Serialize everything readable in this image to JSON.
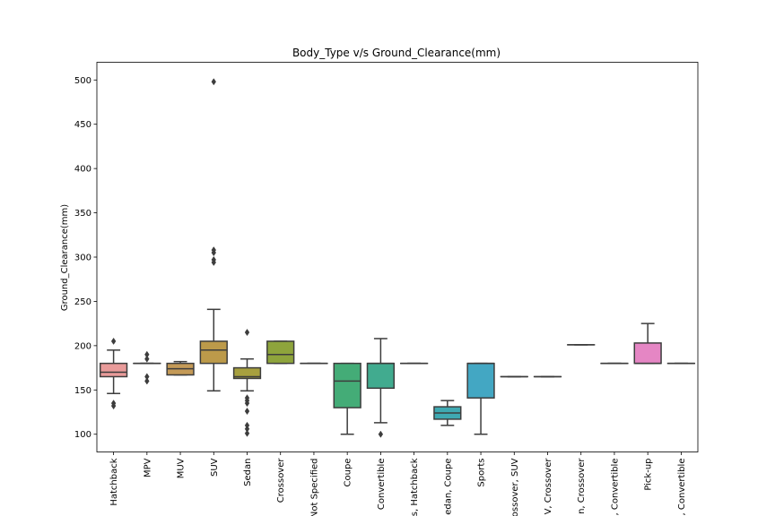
{
  "chart_data": {
    "type": "box",
    "title": "Body_Type v/s Ground_Clearance(mm)",
    "xlabel": "",
    "ylabel": "Ground_Clearance(mm)",
    "ylim": [
      80,
      520
    ],
    "yticks": [
      100,
      150,
      200,
      250,
      300,
      350,
      400,
      450,
      500
    ],
    "grid": false,
    "categories": [
      "Hatchback",
      "MPV",
      "MUV",
      "SUV",
      "Sedan",
      "Crossover",
      "Not Specified",
      "Coupe",
      "Convertible",
      "s, Hatchback",
      "edan, Coupe",
      "Sports",
      "rossover, SUV",
      "V, Crossover",
      "n, Crossover",
      ", Convertible",
      "Pick-up",
      ", Convertible"
    ],
    "boxes": [
      {
        "category": "Hatchback",
        "color": "#e99b9a",
        "whislo": 146,
        "q1": 165,
        "med": 170,
        "q3": 180,
        "whishi": 195,
        "fliers": [
          205,
          135,
          132
        ]
      },
      {
        "category": "MPV",
        "color": "#dfa35e",
        "whislo": 180,
        "q1": 180,
        "med": 180,
        "q3": 180,
        "whishi": 180,
        "fliers": [
          190,
          185,
          165,
          160
        ]
      },
      {
        "category": "MUV",
        "color": "#c49a57",
        "whislo": 167,
        "q1": 167,
        "med": 174,
        "q3": 180,
        "whishi": 182,
        "fliers": []
      },
      {
        "category": "SUV",
        "color": "#bc9a4a",
        "whislo": 149,
        "q1": 180,
        "med": 195,
        "q3": 205,
        "whishi": 241,
        "fliers": [
          498,
          308,
          305,
          297,
          294
        ]
      },
      {
        "category": "Sedan",
        "color": "#a7a03f",
        "whislo": 149,
        "q1": 163,
        "med": 165,
        "q3": 175,
        "whishi": 185,
        "fliers": [
          215,
          141,
          138,
          135,
          126,
          110,
          106,
          101
        ]
      },
      {
        "category": "Crossover",
        "color": "#8ea43c",
        "whislo": 180,
        "q1": 180,
        "med": 190,
        "q3": 205,
        "whishi": 205,
        "fliers": []
      },
      {
        "category": "Not Specified",
        "color": "#5bae52",
        "whislo": 180,
        "q1": 180,
        "med": 180,
        "q3": 180,
        "whishi": 180,
        "fliers": []
      },
      {
        "category": "Coupe",
        "color": "#44ac77",
        "whislo": 100,
        "q1": 130,
        "med": 160,
        "q3": 180,
        "whishi": 180,
        "fliers": []
      },
      {
        "category": "Convertible",
        "color": "#41ab8f",
        "whislo": 113,
        "q1": 152,
        "med": 180,
        "q3": 180,
        "whishi": 208,
        "fliers": [
          100
        ]
      },
      {
        "category": "s, Hatchback",
        "color": "#40ab9f",
        "whislo": 180,
        "q1": 180,
        "med": 180,
        "q3": 180,
        "whishi": 180,
        "fliers": []
      },
      {
        "category": "edan, Coupe",
        "color": "#3fa9b2",
        "whislo": 110,
        "q1": 117,
        "med": 124,
        "q3": 131,
        "whishi": 138,
        "fliers": []
      },
      {
        "category": "Sports",
        "color": "#43a7c3",
        "whislo": 100,
        "q1": 141,
        "med": 180,
        "q3": 180,
        "whishi": 180,
        "fliers": []
      },
      {
        "category": "rossover, SUV",
        "color": "#4aa2d6",
        "whislo": 165,
        "q1": 165,
        "med": 165,
        "q3": 165,
        "whishi": 165,
        "fliers": []
      },
      {
        "category": "V, Crossover",
        "color": "#7b9be1",
        "whislo": 165,
        "q1": 165,
        "med": 165,
        "q3": 165,
        "whishi": 165,
        "fliers": []
      },
      {
        "category": "n, Crossover",
        "color": "#a191e5",
        "whislo": 201,
        "q1": 201,
        "med": 201,
        "q3": 201,
        "whishi": 201,
        "fliers": []
      },
      {
        "category": ", Convertible",
        "color": "#cc89e2",
        "whislo": 180,
        "q1": 180,
        "med": 180,
        "q3": 180,
        "whishi": 180,
        "fliers": []
      },
      {
        "category": "Pick-up",
        "color": "#e586c4",
        "whislo": 180,
        "q1": 180,
        "med": 180,
        "q3": 203,
        "whishi": 225,
        "fliers": []
      },
      {
        "category": ", Convertible",
        "color": "#e98ca8",
        "whislo": 180,
        "q1": 180,
        "med": 180,
        "q3": 180,
        "whishi": 180,
        "fliers": []
      }
    ]
  }
}
